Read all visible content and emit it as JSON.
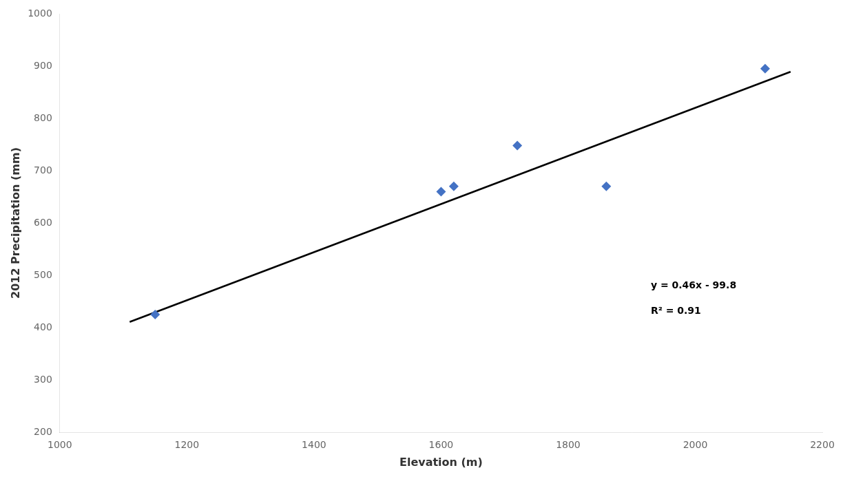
{
  "chart_data": {
    "type": "scatter",
    "xlabel": "Elevation (m)",
    "ylabel": "2012 Precipitation (mm)",
    "series": [
      {
        "type": "scatter",
        "color": "#4472c4",
        "marker": "diamond",
        "x": [
          1150,
          1600,
          1620,
          1720,
          1860,
          2110
        ],
        "values": [
          425,
          660,
          670,
          748,
          670,
          895
        ]
      },
      {
        "type": "line",
        "color": "#000000",
        "x": [
          1110,
          2150
        ],
        "values": [
          410.8,
          889.2
        ]
      }
    ],
    "annotations": [
      {
        "text": "y = 0.46x - 99.8",
        "x": 1930,
        "y": 470
      },
      {
        "text": "R² = 0.91",
        "x": 1930,
        "y": 440
      }
    ],
    "xlim": [
      1000,
      2200
    ],
    "ylim": [
      200,
      1000
    ],
    "xticks": [
      1000,
      1200,
      1400,
      1600,
      1800,
      2000,
      2200
    ],
    "yticks": [
      200,
      300,
      400,
      500,
      600,
      700,
      800,
      900,
      1000
    ],
    "grid": false
  }
}
